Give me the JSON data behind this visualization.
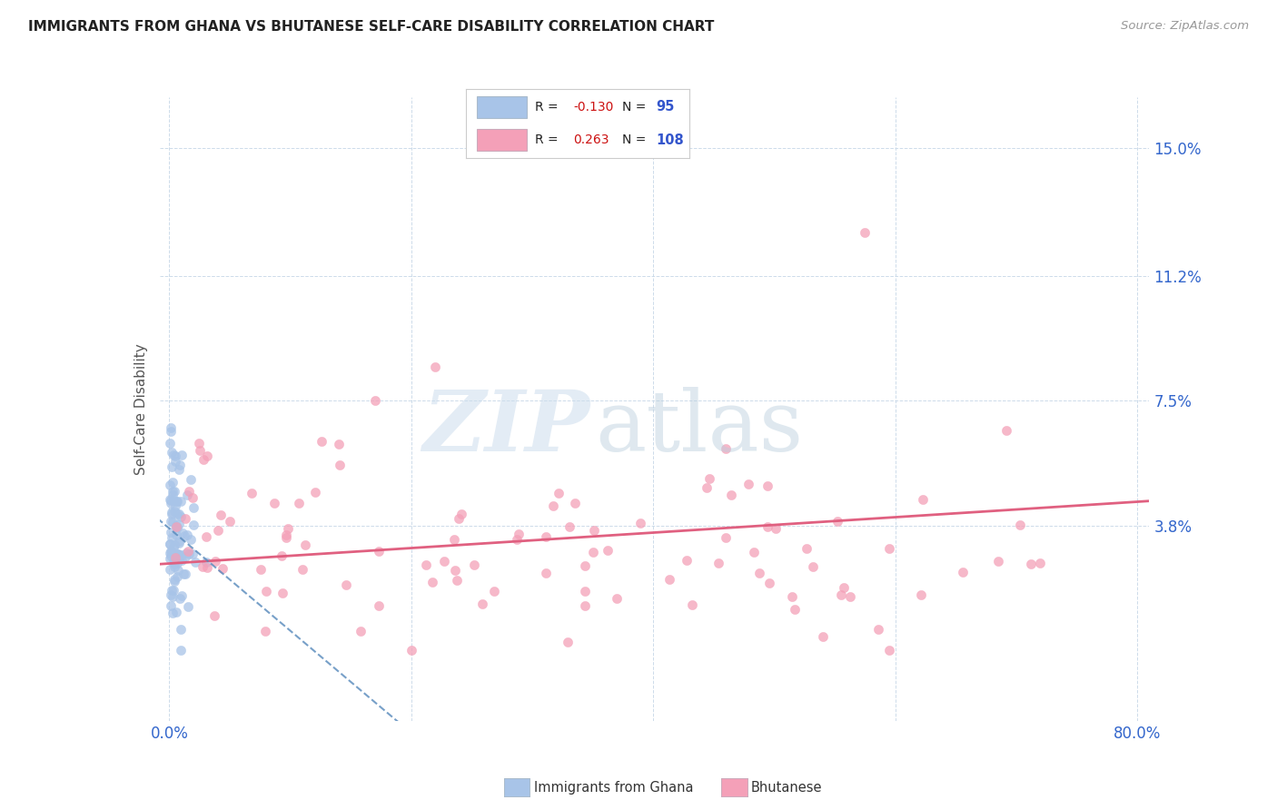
{
  "title": "IMMIGRANTS FROM GHANA VS BHUTANESE SELF-CARE DISABILITY CORRELATION CHART",
  "source": "Source: ZipAtlas.com",
  "ylabel": "Self-Care Disability",
  "legend_ghana": "Immigrants from Ghana",
  "legend_bhutanese": "Bhutanese",
  "r_ghana": "-0.130",
  "n_ghana": "95",
  "r_bhutanese": "0.263",
  "n_bhutanese": "108",
  "color_ghana": "#a8c4e8",
  "color_bhutanese": "#f4a0b8",
  "color_ghana_line": "#5588bb",
  "color_bhutanese_line": "#e06080",
  "xlim": [
    0.0,
    0.8
  ],
  "ylim": [
    -0.02,
    0.165
  ],
  "yticks": [
    0.038,
    0.075,
    0.112,
    0.15
  ],
  "ytick_labels": [
    "3.8%",
    "7.5%",
    "11.2%",
    "15.0%"
  ],
  "title_fontsize": 11,
  "tick_color": "#3366cc",
  "grid_color": "#c8d8e8"
}
